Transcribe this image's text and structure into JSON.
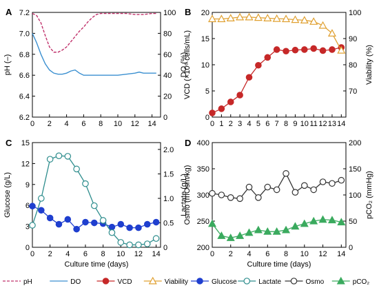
{
  "chart_data": [
    {
      "panel": "A",
      "type": "line",
      "xlabel": "",
      "ylabel_left": "pH (–)",
      "ylabel_right": "DO (%)",
      "xlim": [
        0,
        15
      ],
      "ylim_left": [
        6.2,
        7.2
      ],
      "ylim_right": [
        0,
        100
      ],
      "xticks": [
        "0",
        "2",
        "4",
        "6",
        "8",
        "10",
        "12",
        "14"
      ],
      "yticks_left": [
        "6.2",
        "6.4",
        "6.6",
        "6.8",
        "7.0",
        "7.2"
      ],
      "yticks_right": [
        "0",
        "20",
        "40",
        "60",
        "80",
        "100"
      ],
      "series": [
        {
          "name": "pH",
          "axis": "left",
          "style": "dashed",
          "color": "#c0306a",
          "x": [
            0,
            0.5,
            1,
            1.5,
            2,
            2.5,
            3,
            3.5,
            4,
            4.5,
            5,
            5.5,
            6,
            6.5,
            7,
            7.5,
            8,
            8.5,
            9,
            10,
            11,
            12,
            13,
            14,
            14.5
          ],
          "y": [
            7.19,
            7.17,
            7.1,
            6.98,
            6.87,
            6.82,
            6.82,
            6.84,
            6.87,
            6.92,
            6.97,
            7.02,
            7.06,
            7.11,
            7.15,
            7.18,
            7.19,
            7.19,
            7.19,
            7.19,
            7.19,
            7.18,
            7.18,
            7.19,
            7.19
          ]
        },
        {
          "name": "DO",
          "axis": "right",
          "style": "solid",
          "color": "#3a8fd0",
          "x": [
            0,
            0.5,
            1,
            1.5,
            2,
            2.5,
            3,
            3.5,
            4,
            4.5,
            5,
            5.5,
            6,
            6.5,
            7,
            8,
            9,
            10,
            11,
            12,
            12.5,
            13,
            14,
            14.5
          ],
          "y": [
            80,
            71,
            60,
            51,
            45,
            42,
            41,
            41,
            42,
            44,
            45,
            42,
            40,
            40,
            40,
            40,
            40,
            40,
            41,
            42,
            43,
            42,
            42,
            42
          ]
        }
      ]
    },
    {
      "panel": "B",
      "type": "line",
      "xlabel": "",
      "ylabel_left": "VCD (×10⁶ cells/mL)",
      "ylabel_right": "Viability (%)",
      "xlim": [
        0,
        14.5
      ],
      "ylim_left": [
        0,
        20
      ],
      "ylim_right": [
        60,
        100
      ],
      "xticks": [
        "0",
        "1",
        "2",
        "3",
        "4",
        "5",
        "6",
        "7",
        "8",
        "9",
        "10",
        "11",
        "12",
        "13",
        "14"
      ],
      "yticks_left": [
        "0",
        "5",
        "10",
        "15",
        "20"
      ],
      "yticks_right": [
        "70",
        "80",
        "90",
        "100"
      ],
      "series": [
        {
          "name": "VCD",
          "axis": "left",
          "marker": "circle-filled",
          "color": "#c62828",
          "x": [
            0,
            1,
            2,
            3,
            4,
            5,
            6,
            7,
            8,
            9,
            10,
            11,
            12,
            13,
            14
          ],
          "y": [
            0.8,
            1.6,
            2.9,
            4.2,
            7.6,
            9.9,
            11.4,
            12.9,
            12.6,
            12.8,
            12.9,
            13.1,
            12.7,
            12.9,
            13.3
          ]
        },
        {
          "name": "Viability",
          "axis": "right",
          "marker": "triangle-open",
          "color": "#e0a030",
          "x": [
            0,
            1,
            2,
            3,
            4,
            5,
            6,
            7,
            8,
            9,
            10,
            11,
            12,
            13,
            14
          ],
          "y": [
            97.5,
            97.5,
            97.8,
            98.2,
            98.2,
            98.0,
            97.8,
            97.6,
            97.5,
            97.2,
            97.0,
            96.5,
            95.0,
            92.0,
            85.5
          ]
        }
      ]
    },
    {
      "panel": "C",
      "type": "line",
      "xlabel": "Culture time (days)",
      "ylabel_left": "Glucose (g/L)",
      "ylabel_right": "Lactate (g/L)",
      "xlim": [
        0,
        14.5
      ],
      "ylim_left": [
        0,
        15
      ],
      "ylim_right": [
        0,
        2.14
      ],
      "xticks": [
        "0",
        "2",
        "4",
        "6",
        "8",
        "10",
        "12",
        "14"
      ],
      "yticks_left": [
        "0",
        "3",
        "6",
        "9",
        "12",
        "15"
      ],
      "yticks_right": [
        "0",
        "0.5",
        "1.0",
        "1.5",
        "2.0"
      ],
      "series": [
        {
          "name": "Glucose",
          "axis": "left",
          "marker": "circle-filled",
          "color": "#1f3fcf",
          "x": [
            0,
            1,
            2,
            3,
            4,
            5,
            6,
            7,
            8,
            9,
            10,
            11,
            12,
            13,
            14
          ],
          "y": [
            5.9,
            5.3,
            4.2,
            3.3,
            4.0,
            2.6,
            3.6,
            3.5,
            3.4,
            2.9,
            3.3,
            2.8,
            2.8,
            3.3,
            3.6
          ]
        },
        {
          "name": "Lactate",
          "axis": "right",
          "marker": "circle-open",
          "color": "#2c8c8c",
          "x": [
            0,
            1,
            2,
            3,
            4,
            5,
            6,
            7,
            8,
            9,
            10,
            11,
            12,
            13,
            14
          ],
          "y": [
            0.45,
            1.0,
            1.8,
            1.87,
            1.86,
            1.6,
            1.3,
            0.85,
            0.55,
            0.3,
            0.1,
            0.05,
            0.05,
            0.07,
            0.18
          ]
        }
      ]
    },
    {
      "panel": "D",
      "type": "line",
      "xlabel": "Culture time (days)",
      "ylabel_left": "Osmo (mOsm/kg)",
      "ylabel_right": "pCO₂ (mmHg)",
      "xlim": [
        0,
        14.5
      ],
      "ylim_left": [
        200,
        400
      ],
      "ylim_right": [
        0,
        200
      ],
      "xticks": [
        "0",
        "2",
        "4",
        "6",
        "8",
        "10",
        "12",
        "14"
      ],
      "yticks_left": [
        "200",
        "250",
        "300",
        "350",
        "400"
      ],
      "yticks_right": [
        "0",
        "50",
        "100",
        "150",
        "200"
      ],
      "series": [
        {
          "name": "Osmo",
          "axis": "left",
          "marker": "circle-open",
          "color": "#333333",
          "x": [
            0,
            1,
            2,
            3,
            4,
            5,
            6,
            7,
            8,
            9,
            10,
            11,
            12,
            13,
            14
          ],
          "y": [
            303,
            300,
            295,
            293,
            315,
            295,
            315,
            310,
            341,
            305,
            318,
            310,
            325,
            322,
            328
          ]
        },
        {
          "name": "pCO₂",
          "axis": "right",
          "marker": "triangle-filled",
          "color": "#3aaa5e",
          "x": [
            0,
            1,
            2,
            3,
            4,
            5,
            6,
            7,
            8,
            9,
            10,
            11,
            12,
            13,
            14
          ],
          "y": [
            45,
            22,
            18,
            22,
            28,
            33,
            30,
            30,
            33,
            40,
            45,
            50,
            53,
            52,
            48
          ]
        }
      ]
    }
  ],
  "panels": {
    "A": "A",
    "B": "B",
    "C": "C",
    "D": "D"
  },
  "legend": [
    {
      "key": "pH",
      "label": "pH",
      "style": "dashed",
      "marker": "none",
      "color": "#c0306a"
    },
    {
      "key": "DO",
      "label": "DO",
      "style": "solid",
      "marker": "none",
      "color": "#3a8fd0"
    },
    {
      "key": "VCD",
      "label": "VCD",
      "style": "solid",
      "marker": "circle-filled",
      "color": "#c62828"
    },
    {
      "key": "Viability",
      "label": "Viability",
      "style": "solid",
      "marker": "triangle-open",
      "color": "#e0a030"
    },
    {
      "key": "Glucose",
      "label": "Glucose",
      "style": "solid",
      "marker": "circle-filled",
      "color": "#1f3fcf"
    },
    {
      "key": "Lactate",
      "label": "Lactate",
      "style": "solid",
      "marker": "circle-open",
      "color": "#2c8c8c"
    },
    {
      "key": "Osmo",
      "label": "Osmo",
      "style": "solid",
      "marker": "circle-open",
      "color": "#333333"
    },
    {
      "key": "pCO2",
      "label": "pCO₂",
      "style": "solid",
      "marker": "triangle-filled",
      "color": "#3aaa5e"
    }
  ]
}
